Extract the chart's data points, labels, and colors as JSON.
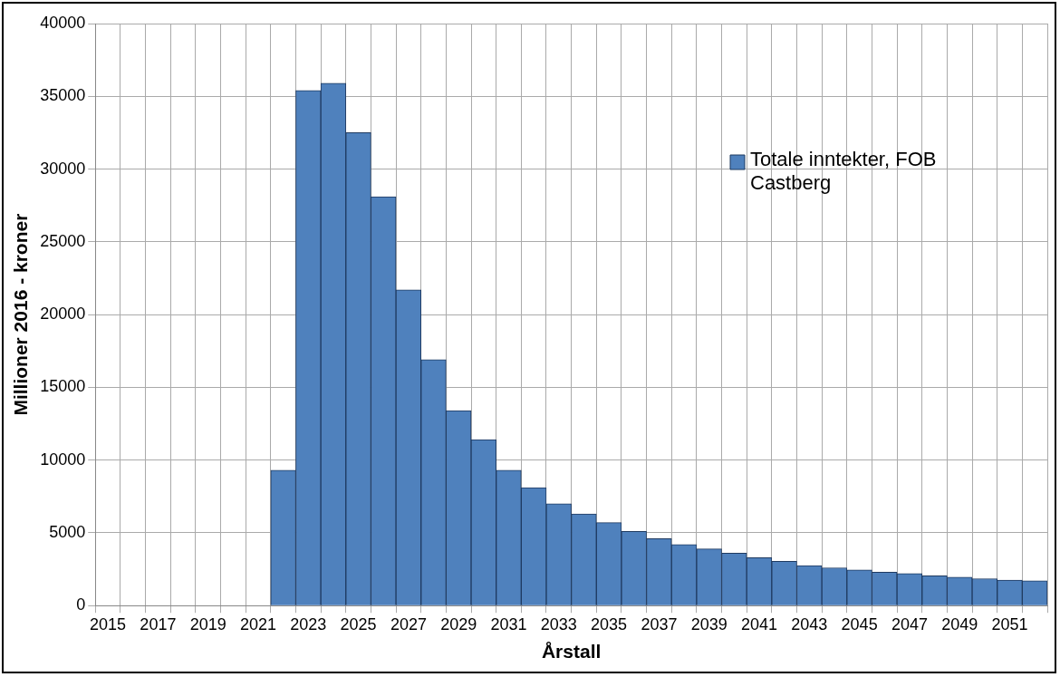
{
  "chart_data": {
    "type": "bar",
    "xlabel": "Årstall",
    "ylabel": "Millioner 2016 - kroner",
    "categories": [
      "2015",
      null,
      "2017",
      null,
      "2019",
      null,
      "2021",
      null,
      "2023",
      null,
      "2025",
      null,
      "2027",
      null,
      "2029",
      null,
      "2031",
      null,
      "2033",
      null,
      "2035",
      null,
      "2037",
      null,
      "2039",
      null,
      "2041",
      null,
      "2043",
      null,
      "2045",
      null,
      "2047",
      null,
      "2049",
      null,
      "2051",
      null
    ],
    "series": [
      {
        "name": "Totale inntekter, FOB Castberg",
        "color": "#4f81bd",
        "values": [
          null,
          null,
          null,
          null,
          null,
          null,
          null,
          9300,
          35400,
          35900,
          32500,
          28100,
          21700,
          16900,
          13400,
          11400,
          9300,
          8100,
          7000,
          6300,
          5700,
          5100,
          4600,
          4200,
          3900,
          3600,
          3300,
          3050,
          2750,
          2600,
          2450,
          2300,
          2200,
          2050,
          1950,
          1850,
          1750,
          1700
        ]
      }
    ],
    "ylim": [
      0,
      40000
    ],
    "yticks": [
      0,
      5000,
      10000,
      15000,
      20000,
      25000,
      30000,
      35000,
      40000
    ],
    "grid": true,
    "legend": "top right"
  }
}
